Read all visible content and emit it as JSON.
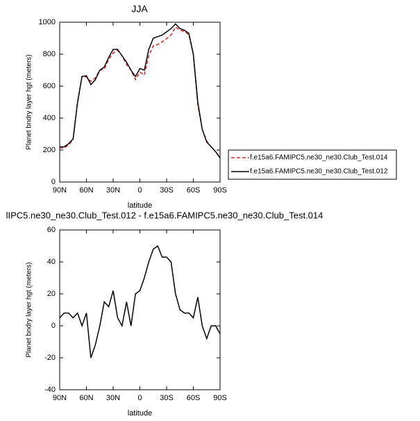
{
  "chart_data": [
    {
      "type": "line",
      "title": "JJA",
      "xlabel": "latitude",
      "ylabel": "Planet bndry layer hgt (meters)",
      "x": [
        90,
        85,
        80,
        75,
        70,
        65,
        60,
        55,
        50,
        45,
        40,
        35,
        30,
        25,
        20,
        15,
        10,
        5,
        0,
        -5,
        -10,
        -15,
        -20,
        -25,
        -30,
        -35,
        -40,
        -45,
        -50,
        -55,
        -60,
        -65,
        -70,
        -75,
        -80,
        -85,
        -90
      ],
      "series": [
        {
          "name": "f.e15a6.FAMIPC5.ne30_ne30.Club_Test.014",
          "color": "#e02020",
          "line_style": "dashed",
          "values": [
            215,
            212,
            232,
            265,
            492,
            660,
            657,
            630,
            652,
            700,
            705,
            768,
            808,
            825,
            790,
            735,
            700,
            640,
            688,
            670,
            790,
            852,
            860,
            877,
            897,
            920,
            970,
            950,
            942,
            922,
            795,
            482,
            330,
            258,
            220,
            190,
            155
          ]
        },
        {
          "name": "f.e15a6.FAMIPC5.ne30_ne30.Club_Test.012",
          "color": "#000000",
          "line_style": "solid",
          "values": [
            220,
            220,
            240,
            270,
            500,
            660,
            665,
            610,
            640,
            700,
            720,
            780,
            830,
            830,
            790,
            750,
            700,
            660,
            710,
            700,
            830,
            900,
            910,
            920,
            940,
            960,
            990,
            960,
            950,
            930,
            800,
            500,
            330,
            250,
            220,
            190,
            150
          ]
        }
      ],
      "xlim": [
        90,
        -90
      ],
      "xticks": [
        {
          "value": 90,
          "label": "90N"
        },
        {
          "value": 60,
          "label": "60N"
        },
        {
          "value": 30,
          "label": "30N"
        },
        0,
        {
          "value": -30,
          "label": "30S"
        },
        {
          "value": -60,
          "label": "60S"
        },
        {
          "value": -90,
          "label": "90S"
        }
      ],
      "ylim": [
        0,
        1000
      ],
      "yticks": [
        0,
        200,
        400,
        600,
        800,
        1000
      ],
      "legend": "right"
    },
    {
      "type": "line",
      "title": "lIPC5.ne30_ne30.Club_Test.012 - f.e15a6.FAMIPC5.ne30_ne30.Club_Test.014",
      "xlabel": "latitude",
      "ylabel": "Planet bndry layer hgt (meters)",
      "x": [
        90,
        85,
        80,
        75,
        70,
        65,
        60,
        55,
        50,
        45,
        40,
        35,
        30,
        25,
        20,
        15,
        10,
        5,
        0,
        -5,
        -10,
        -15,
        -20,
        -25,
        -30,
        -35,
        -40,
        -45,
        -50,
        -55,
        -60,
        -65,
        -70,
        -75,
        -80,
        -85,
        -90
      ],
      "series": [
        {
          "color": "#000000",
          "line_style": "solid",
          "values": [
            5,
            8,
            8,
            5,
            8,
            0,
            8,
            -20,
            -12,
            0,
            15,
            12,
            22,
            5,
            0,
            15,
            0,
            20,
            22,
            30,
            40,
            48,
            50,
            43,
            43,
            40,
            20,
            10,
            8,
            8,
            5,
            18,
            0,
            -8,
            0,
            0,
            -5
          ]
        }
      ],
      "xlim": [
        90,
        -90
      ],
      "xticks": [
        {
          "value": 90,
          "label": "90N"
        },
        {
          "value": 60,
          "label": "60N"
        },
        {
          "value": 30,
          "label": "30N"
        },
        0,
        {
          "value": -30,
          "label": "30S"
        },
        {
          "value": -60,
          "label": "60S"
        },
        {
          "value": -90,
          "label": "90S"
        }
      ],
      "ylim": [
        -40,
        60
      ],
      "yticks": [
        -40,
        -20,
        0,
        20,
        40,
        60
      ]
    }
  ]
}
